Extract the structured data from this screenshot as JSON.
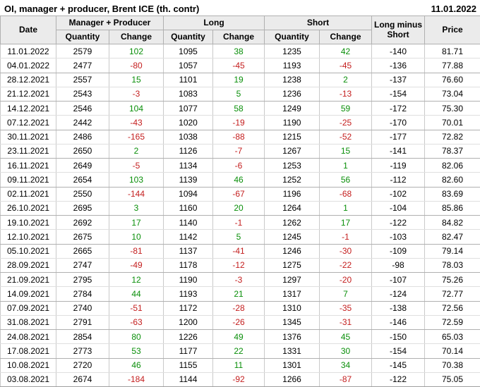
{
  "title": "OI, manager + producer, Brent ICE (th. contr)",
  "report_date": "11.01.2022",
  "colors": {
    "positive": "#0a8f0a",
    "negative": "#c41e1e",
    "header_bg": "#ebebeb"
  },
  "table": {
    "groups": {
      "manager_producer": "Manager + Producer",
      "long": "Long",
      "short": "Short"
    },
    "columns": {
      "date": "Date",
      "quantity": "Quantity",
      "change": "Change",
      "long_minus_short": "Long minus Short",
      "price": "Price"
    },
    "rows": [
      {
        "date": "11.01.2022",
        "mp_qty": "2579",
        "mp_chg": "102",
        "long_qty": "1095",
        "long_chg": "38",
        "short_qty": "1235",
        "short_chg": "42",
        "lms": "-140",
        "price": "81.71"
      },
      {
        "date": "04.01.2022",
        "mp_qty": "2477",
        "mp_chg": "-80",
        "long_qty": "1057",
        "long_chg": "-45",
        "short_qty": "1193",
        "short_chg": "-45",
        "lms": "-136",
        "price": "77.88"
      },
      {
        "date": "28.12.2021",
        "mp_qty": "2557",
        "mp_chg": "15",
        "long_qty": "1101",
        "long_chg": "19",
        "short_qty": "1238",
        "short_chg": "2",
        "lms": "-137",
        "price": "76.60"
      },
      {
        "date": "21.12.2021",
        "mp_qty": "2543",
        "mp_chg": "-3",
        "long_qty": "1083",
        "long_chg": "5",
        "short_qty": "1236",
        "short_chg": "-13",
        "lms": "-154",
        "price": "73.04"
      },
      {
        "date": "14.12.2021",
        "mp_qty": "2546",
        "mp_chg": "104",
        "long_qty": "1077",
        "long_chg": "58",
        "short_qty": "1249",
        "short_chg": "59",
        "lms": "-172",
        "price": "75.30"
      },
      {
        "date": "07.12.2021",
        "mp_qty": "2442",
        "mp_chg": "-43",
        "long_qty": "1020",
        "long_chg": "-19",
        "short_qty": "1190",
        "short_chg": "-25",
        "lms": "-170",
        "price": "70.01"
      },
      {
        "date": "30.11.2021",
        "mp_qty": "2486",
        "mp_chg": "-165",
        "long_qty": "1038",
        "long_chg": "-88",
        "short_qty": "1215",
        "short_chg": "-52",
        "lms": "-177",
        "price": "72.82"
      },
      {
        "date": "23.11.2021",
        "mp_qty": "2650",
        "mp_chg": "2",
        "long_qty": "1126",
        "long_chg": "-7",
        "short_qty": "1267",
        "short_chg": "15",
        "lms": "-141",
        "price": "78.37"
      },
      {
        "date": "16.11.2021",
        "mp_qty": "2649",
        "mp_chg": "-5",
        "long_qty": "1134",
        "long_chg": "-6",
        "short_qty": "1253",
        "short_chg": "1",
        "lms": "-119",
        "price": "82.06"
      },
      {
        "date": "09.11.2021",
        "mp_qty": "2654",
        "mp_chg": "103",
        "long_qty": "1139",
        "long_chg": "46",
        "short_qty": "1252",
        "short_chg": "56",
        "lms": "-112",
        "price": "82.60"
      },
      {
        "date": "02.11.2021",
        "mp_qty": "2550",
        "mp_chg": "-144",
        "long_qty": "1094",
        "long_chg": "-67",
        "short_qty": "1196",
        "short_chg": "-68",
        "lms": "-102",
        "price": "83.69"
      },
      {
        "date": "26.10.2021",
        "mp_qty": "2695",
        "mp_chg": "3",
        "long_qty": "1160",
        "long_chg": "20",
        "short_qty": "1264",
        "short_chg": "1",
        "lms": "-104",
        "price": "85.86"
      },
      {
        "date": "19.10.2021",
        "mp_qty": "2692",
        "mp_chg": "17",
        "long_qty": "1140",
        "long_chg": "-1",
        "short_qty": "1262",
        "short_chg": "17",
        "lms": "-122",
        "price": "84.82"
      },
      {
        "date": "12.10.2021",
        "mp_qty": "2675",
        "mp_chg": "10",
        "long_qty": "1142",
        "long_chg": "5",
        "short_qty": "1245",
        "short_chg": "-1",
        "lms": "-103",
        "price": "82.47"
      },
      {
        "date": "05.10.2021",
        "mp_qty": "2665",
        "mp_chg": "-81",
        "long_qty": "1137",
        "long_chg": "-41",
        "short_qty": "1246",
        "short_chg": "-30",
        "lms": "-109",
        "price": "79.14"
      },
      {
        "date": "28.09.2021",
        "mp_qty": "2747",
        "mp_chg": "-49",
        "long_qty": "1178",
        "long_chg": "-12",
        "short_qty": "1275",
        "short_chg": "-22",
        "lms": "-98",
        "price": "78.03"
      },
      {
        "date": "21.09.2021",
        "mp_qty": "2795",
        "mp_chg": "12",
        "long_qty": "1190",
        "long_chg": "-3",
        "short_qty": "1297",
        "short_chg": "-20",
        "lms": "-107",
        "price": "75.26"
      },
      {
        "date": "14.09.2021",
        "mp_qty": "2784",
        "mp_chg": "44",
        "long_qty": "1193",
        "long_chg": "21",
        "short_qty": "1317",
        "short_chg": "7",
        "lms": "-124",
        "price": "72.77"
      },
      {
        "date": "07.09.2021",
        "mp_qty": "2740",
        "mp_chg": "-51",
        "long_qty": "1172",
        "long_chg": "-28",
        "short_qty": "1310",
        "short_chg": "-35",
        "lms": "-138",
        "price": "72.56"
      },
      {
        "date": "31.08.2021",
        "mp_qty": "2791",
        "mp_chg": "-63",
        "long_qty": "1200",
        "long_chg": "-26",
        "short_qty": "1345",
        "short_chg": "-31",
        "lms": "-146",
        "price": "72.59"
      },
      {
        "date": "24.08.2021",
        "mp_qty": "2854",
        "mp_chg": "80",
        "long_qty": "1226",
        "long_chg": "49",
        "short_qty": "1376",
        "short_chg": "45",
        "lms": "-150",
        "price": "65.03"
      },
      {
        "date": "17.08.2021",
        "mp_qty": "2773",
        "mp_chg": "53",
        "long_qty": "1177",
        "long_chg": "22",
        "short_qty": "1331",
        "short_chg": "30",
        "lms": "-154",
        "price": "70.14"
      },
      {
        "date": "10.08.2021",
        "mp_qty": "2720",
        "mp_chg": "46",
        "long_qty": "1155",
        "long_chg": "11",
        "short_qty": "1301",
        "short_chg": "34",
        "lms": "-145",
        "price": "70.38"
      },
      {
        "date": "03.08.2021",
        "mp_qty": "2674",
        "mp_chg": "-184",
        "long_qty": "1144",
        "long_chg": "-92",
        "short_qty": "1266",
        "short_chg": "-87",
        "lms": "-122",
        "price": "75.05"
      }
    ]
  }
}
